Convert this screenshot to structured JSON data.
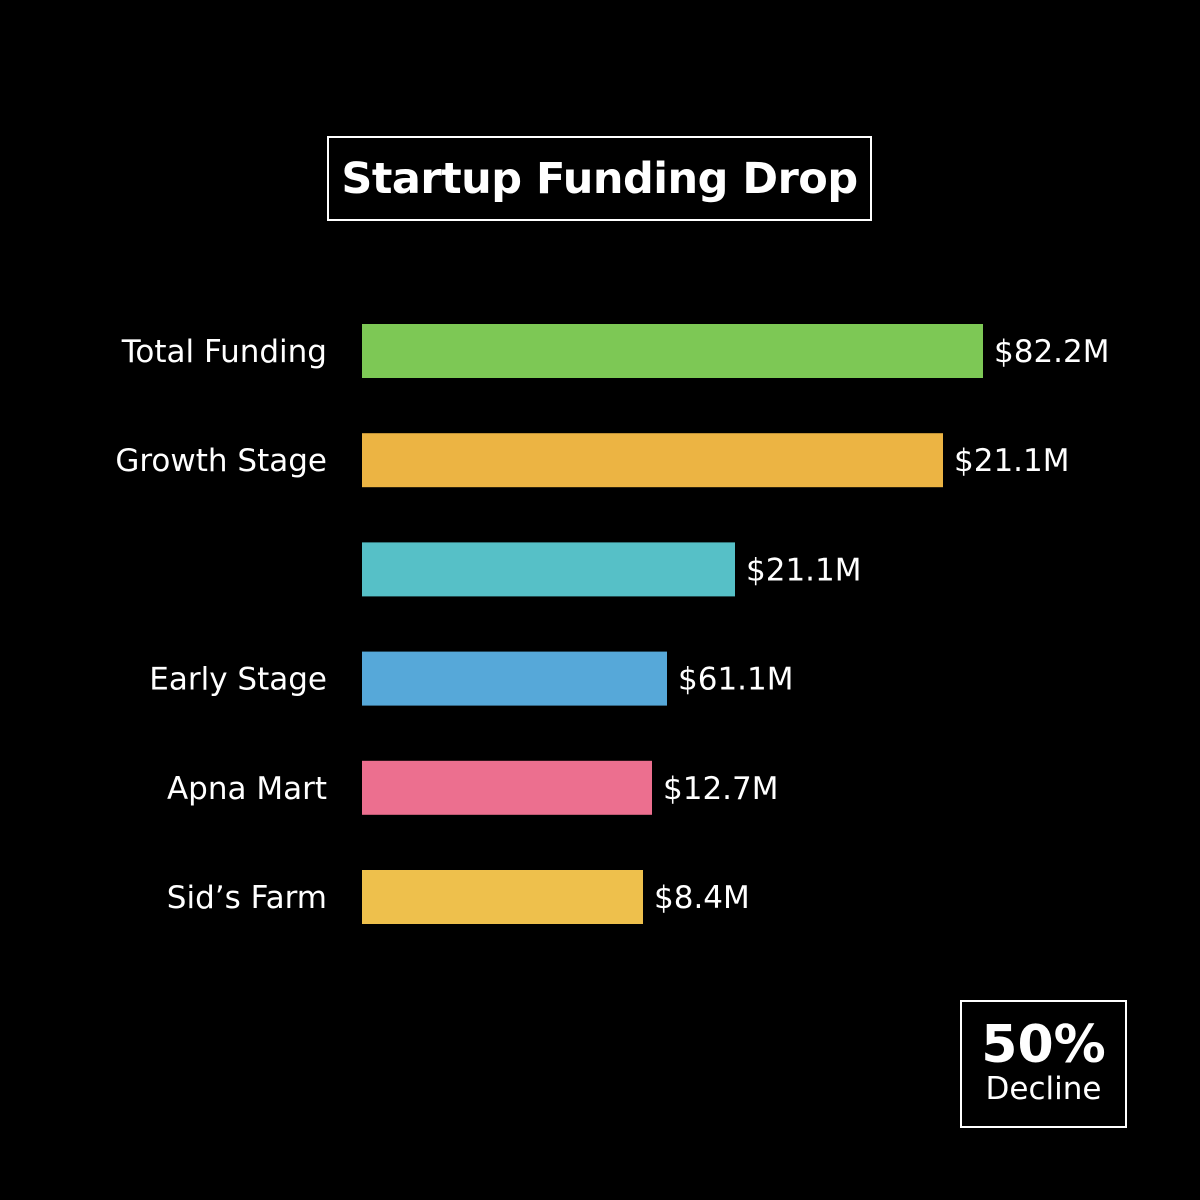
{
  "chart_data": {
    "type": "bar",
    "orientation": "horizontal",
    "title": "Startup Funding Drop",
    "categories": [
      "Total Funding",
      "Growth Stage",
      "",
      "Early Stage",
      "Apna Mart",
      "Sid’s Farm"
    ],
    "values": [
      82.2,
      21.1,
      21.1,
      61.1,
      12.7,
      8.4
    ],
    "value_labels": [
      "$82.2M",
      "$21.1M",
      "$21.1M",
      "$61.1M",
      "$12.7M",
      "$8.4M"
    ],
    "colors": [
      "#7DC855",
      "#ECB443",
      "#56C0C7",
      "#56A8D9",
      "#EC6F8F",
      "#EEC04C"
    ],
    "grid": false,
    "legend": "none"
  },
  "stat": {
    "value": "50%",
    "caption": "Decline"
  },
  "colors": {
    "background": "#000000",
    "text": "#ffffff"
  }
}
